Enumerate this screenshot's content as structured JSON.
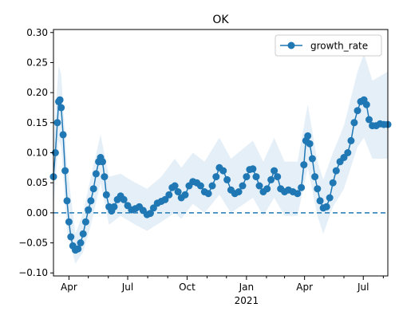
{
  "chart_data": {
    "type": "line",
    "title": "OK",
    "xlabel": "",
    "ylabel": "",
    "x_range": [
      "2020-03-08",
      "2021-08-08"
    ],
    "ylim": [
      -0.105,
      0.305
    ],
    "y_ticks": [
      -0.1,
      -0.05,
      0.0,
      0.05,
      0.1,
      0.15,
      0.2,
      0.25,
      0.3
    ],
    "y_tick_labels": [
      "−0.10",
      "−0.05",
      "0.00",
      "0.05",
      "0.10",
      "0.15",
      "0.20",
      "0.25",
      "0.30"
    ],
    "x_major_ticks": [
      {
        "date": "2020-04-01",
        "label": "Apr",
        "sublabel": ""
      },
      {
        "date": "2020-07-01",
        "label": "Jul",
        "sublabel": ""
      },
      {
        "date": "2020-10-01",
        "label": "Oct",
        "sublabel": ""
      },
      {
        "date": "2021-01-01",
        "label": "Jan",
        "sublabel": "2021"
      },
      {
        "date": "2021-04-01",
        "label": "Apr",
        "sublabel": ""
      },
      {
        "date": "2021-07-01",
        "label": "Jul",
        "sublabel": ""
      }
    ],
    "x_minor_ticks": [
      "2020-05-01",
      "2020-06-01",
      "2020-08-01",
      "2020-09-01",
      "2020-11-01",
      "2020-12-01",
      "2021-02-01",
      "2021-03-01",
      "2021-05-01",
      "2021-06-01",
      "2021-08-01"
    ],
    "reference_line": {
      "y": 0.0,
      "style": "dashed",
      "color": "#1f77b4"
    },
    "legend": {
      "position": "top-right",
      "entries": [
        "growth_rate"
      ]
    },
    "grid": false,
    "colors": {
      "series": "#1f77b4",
      "band": "#dce9f5"
    },
    "series": [
      {
        "name": "growth_rate",
        "marker": "circle",
        "points": [
          [
            "2020-03-08",
            0.06
          ],
          [
            "2020-03-11",
            0.1
          ],
          [
            "2020-03-14",
            0.15
          ],
          [
            "2020-03-16",
            0.185
          ],
          [
            "2020-03-18",
            0.188
          ],
          [
            "2020-03-20",
            0.175
          ],
          [
            "2020-03-23",
            0.13
          ],
          [
            "2020-03-26",
            0.07
          ],
          [
            "2020-03-29",
            0.02
          ],
          [
            "2020-04-01",
            -0.015
          ],
          [
            "2020-04-04",
            -0.04
          ],
          [
            "2020-04-07",
            -0.055
          ],
          [
            "2020-04-11",
            -0.062
          ],
          [
            "2020-04-15",
            -0.06
          ],
          [
            "2020-04-19",
            -0.05
          ],
          [
            "2020-04-23",
            -0.035
          ],
          [
            "2020-04-27",
            -0.015
          ],
          [
            "2020-05-01",
            0.005
          ],
          [
            "2020-05-05",
            0.02
          ],
          [
            "2020-05-09",
            0.04
          ],
          [
            "2020-05-13",
            0.065
          ],
          [
            "2020-05-17",
            0.085
          ],
          [
            "2020-05-20",
            0.092
          ],
          [
            "2020-05-23",
            0.085
          ],
          [
            "2020-05-26",
            0.06
          ],
          [
            "2020-05-29",
            0.03
          ],
          [
            "2020-06-02",
            0.01
          ],
          [
            "2020-06-06",
            0.003
          ],
          [
            "2020-06-10",
            0.01
          ],
          [
            "2020-06-15",
            0.022
          ],
          [
            "2020-06-20",
            0.028
          ],
          [
            "2020-06-25",
            0.022
          ],
          [
            "2020-07-01",
            0.012
          ],
          [
            "2020-07-07",
            0.005
          ],
          [
            "2020-07-13",
            0.007
          ],
          [
            "2020-07-19",
            0.01
          ],
          [
            "2020-07-25",
            0.004
          ],
          [
            "2020-07-31",
            -0.003
          ],
          [
            "2020-08-05",
            -0.001
          ],
          [
            "2020-08-10",
            0.008
          ],
          [
            "2020-08-16",
            0.016
          ],
          [
            "2020-08-22",
            0.019
          ],
          [
            "2020-08-28",
            0.022
          ],
          [
            "2020-09-03",
            0.03
          ],
          [
            "2020-09-08",
            0.042
          ],
          [
            "2020-09-12",
            0.045
          ],
          [
            "2020-09-17",
            0.035
          ],
          [
            "2020-09-22",
            0.025
          ],
          [
            "2020-09-28",
            0.03
          ],
          [
            "2020-10-04",
            0.045
          ],
          [
            "2020-10-10",
            0.052
          ],
          [
            "2020-10-16",
            0.05
          ],
          [
            "2020-10-22",
            0.045
          ],
          [
            "2020-10-28",
            0.035
          ],
          [
            "2020-11-03",
            0.032
          ],
          [
            "2020-11-09",
            0.045
          ],
          [
            "2020-11-15",
            0.06
          ],
          [
            "2020-11-20",
            0.075
          ],
          [
            "2020-11-26",
            0.07
          ],
          [
            "2020-12-02",
            0.055
          ],
          [
            "2020-12-08",
            0.038
          ],
          [
            "2020-12-14",
            0.032
          ],
          [
            "2020-12-20",
            0.035
          ],
          [
            "2020-12-26",
            0.045
          ],
          [
            "2021-01-01",
            0.06
          ],
          [
            "2021-01-06",
            0.072
          ],
          [
            "2021-01-11",
            0.073
          ],
          [
            "2021-01-16",
            0.06
          ],
          [
            "2021-01-21",
            0.045
          ],
          [
            "2021-01-27",
            0.035
          ],
          [
            "2021-02-02",
            0.04
          ],
          [
            "2021-02-08",
            0.055
          ],
          [
            "2021-02-13",
            0.07
          ],
          [
            "2021-02-18",
            0.06
          ],
          [
            "2021-02-23",
            0.04
          ],
          [
            "2021-03-01",
            0.035
          ],
          [
            "2021-03-07",
            0.038
          ],
          [
            "2021-03-14",
            0.035
          ],
          [
            "2021-03-21",
            0.032
          ],
          [
            "2021-03-27",
            0.042
          ],
          [
            "2021-03-31",
            0.08
          ],
          [
            "2021-04-03",
            0.12
          ],
          [
            "2021-04-06",
            0.128
          ],
          [
            "2021-04-09",
            0.115
          ],
          [
            "2021-04-13",
            0.09
          ],
          [
            "2021-04-17",
            0.06
          ],
          [
            "2021-04-21",
            0.04
          ],
          [
            "2021-04-25",
            0.02
          ],
          [
            "2021-04-30",
            0.008
          ],
          [
            "2021-05-05",
            0.01
          ],
          [
            "2021-05-10",
            0.025
          ],
          [
            "2021-05-15",
            0.05
          ],
          [
            "2021-05-20",
            0.07
          ],
          [
            "2021-05-26",
            0.085
          ],
          [
            "2021-06-01",
            0.092
          ],
          [
            "2021-06-07",
            0.1
          ],
          [
            "2021-06-12",
            0.12
          ],
          [
            "2021-06-17",
            0.15
          ],
          [
            "2021-06-22",
            0.17
          ],
          [
            "2021-06-27",
            0.185
          ],
          [
            "2021-07-02",
            0.188
          ],
          [
            "2021-07-06",
            0.18
          ],
          [
            "2021-07-10",
            0.155
          ],
          [
            "2021-07-15",
            0.145
          ],
          [
            "2021-07-21",
            0.145
          ],
          [
            "2021-07-27",
            0.148
          ],
          [
            "2021-08-02",
            0.147
          ],
          [
            "2021-08-08",
            0.147
          ]
        ]
      }
    ],
    "band": [
      [
        "2020-03-08",
        0.01,
        0.12
      ],
      [
        "2020-03-16",
        0.12,
        0.245
      ],
      [
        "2020-03-20",
        0.11,
        0.23
      ],
      [
        "2020-03-29",
        -0.03,
        0.08
      ],
      [
        "2020-04-11",
        -0.085,
        -0.035
      ],
      [
        "2020-04-23",
        -0.065,
        0.0
      ],
      [
        "2020-05-05",
        -0.02,
        0.06
      ],
      [
        "2020-05-20",
        0.05,
        0.13
      ],
      [
        "2020-06-02",
        -0.02,
        0.06
      ],
      [
        "2020-06-20",
        -0.005,
        0.065
      ],
      [
        "2020-07-13",
        -0.02,
        0.05
      ],
      [
        "2020-07-31",
        -0.03,
        0.04
      ],
      [
        "2020-08-22",
        -0.015,
        0.06
      ],
      [
        "2020-09-12",
        0.0,
        0.09
      ],
      [
        "2020-09-22",
        -0.01,
        0.075
      ],
      [
        "2020-10-10",
        0.015,
        0.1
      ],
      [
        "2020-10-28",
        0.0,
        0.085
      ],
      [
        "2020-11-20",
        0.03,
        0.125
      ],
      [
        "2020-12-08",
        0.0,
        0.09
      ],
      [
        "2021-01-11",
        0.025,
        0.12
      ],
      [
        "2021-01-27",
        -0.005,
        0.085
      ],
      [
        "2021-02-13",
        0.025,
        0.125
      ],
      [
        "2021-03-01",
        -0.005,
        0.085
      ],
      [
        "2021-03-21",
        -0.005,
        0.085
      ],
      [
        "2021-04-06",
        0.075,
        0.18
      ],
      [
        "2021-04-21",
        -0.005,
        0.085
      ],
      [
        "2021-04-30",
        -0.035,
        0.055
      ],
      [
        "2021-05-15",
        0.01,
        0.1
      ],
      [
        "2021-06-01",
        0.04,
        0.145
      ],
      [
        "2021-06-22",
        0.11,
        0.235
      ],
      [
        "2021-07-02",
        0.125,
        0.265
      ],
      [
        "2021-07-15",
        0.09,
        0.22
      ],
      [
        "2021-08-08",
        0.09,
        0.235
      ]
    ]
  }
}
